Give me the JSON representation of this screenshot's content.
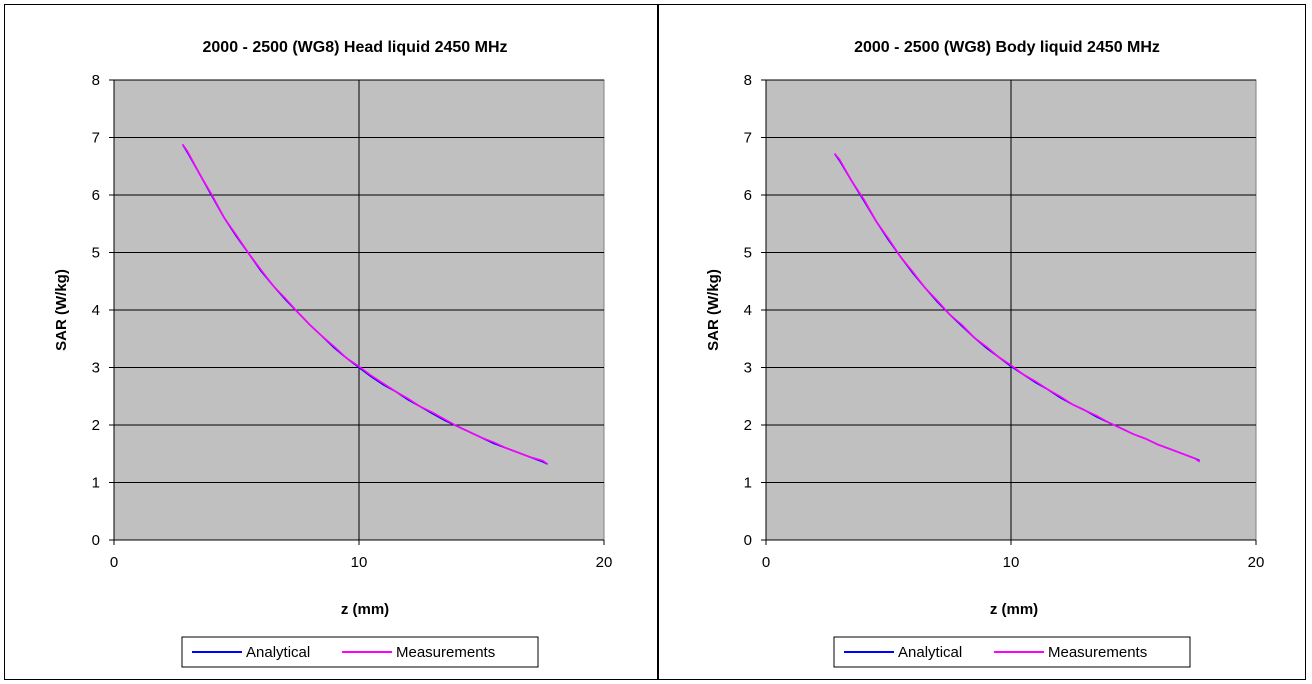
{
  "chart_data": [
    {
      "type": "line",
      "title": "2000 - 2500 (WG8) Head liquid 2450 MHz",
      "xlabel": "z (mm)",
      "ylabel": "SAR (W/kg)",
      "xlim": [
        0,
        20
      ],
      "ylim": [
        0,
        8
      ],
      "xticks": [
        "0",
        "10",
        "20"
      ],
      "yticks": [
        "0",
        "1",
        "2",
        "3",
        "4",
        "5",
        "6",
        "7",
        "8"
      ],
      "grid": true,
      "legend_position": "bottom",
      "series": [
        {
          "name": "Analytical",
          "color": "#0000ff",
          "x": [
            2.8,
            3.0,
            3.5,
            4.0,
            4.5,
            5.0,
            5.5,
            6.0,
            6.5,
            7.0,
            7.5,
            8.0,
            8.5,
            9.0,
            9.5,
            10.0,
            10.5,
            11.0,
            11.5,
            12.0,
            12.5,
            13.0,
            13.5,
            14.0,
            14.5,
            15.0,
            15.5,
            16.0,
            16.5,
            17.0,
            17.5,
            17.7
          ],
          "y": [
            6.88,
            6.74,
            6.36,
            5.98,
            5.6,
            5.28,
            4.98,
            4.68,
            4.42,
            4.18,
            3.96,
            3.74,
            3.54,
            3.34,
            3.16,
            3.0,
            2.84,
            2.7,
            2.58,
            2.44,
            2.32,
            2.2,
            2.08,
            1.98,
            1.88,
            1.78,
            1.68,
            1.6,
            1.52,
            1.44,
            1.36,
            1.32
          ]
        },
        {
          "name": "Measurements",
          "color": "#ff00ff",
          "x": [
            2.8,
            3.0,
            3.5,
            4.0,
            4.5,
            5.0,
            5.5,
            6.0,
            6.5,
            7.0,
            7.5,
            8.0,
            8.5,
            9.0,
            9.5,
            10.0,
            10.5,
            11.0,
            11.5,
            12.0,
            12.5,
            13.0,
            13.5,
            14.0,
            14.5,
            15.0,
            15.5,
            16.0,
            16.5,
            17.0,
            17.5,
            17.7
          ],
          "y": [
            6.88,
            6.76,
            6.36,
            6.0,
            5.6,
            5.3,
            4.98,
            4.7,
            4.42,
            4.2,
            3.96,
            3.74,
            3.54,
            3.36,
            3.16,
            3.02,
            2.86,
            2.72,
            2.58,
            2.46,
            2.32,
            2.22,
            2.1,
            1.98,
            1.88,
            1.78,
            1.7,
            1.6,
            1.52,
            1.44,
            1.38,
            1.32
          ]
        }
      ]
    },
    {
      "type": "line",
      "title": "2000 - 2500 (WG8) Body liquid 2450 MHz",
      "xlabel": "z (mm)",
      "ylabel": "SAR (W/kg)",
      "xlim": [
        0,
        20
      ],
      "ylim": [
        0,
        8
      ],
      "xticks": [
        "0",
        "10",
        "20"
      ],
      "yticks": [
        "0",
        "1",
        "2",
        "3",
        "4",
        "5",
        "6",
        "7",
        "8"
      ],
      "grid": true,
      "legend_position": "bottom",
      "series": [
        {
          "name": "Analytical",
          "color": "#0000ff",
          "x": [
            2.8,
            3.0,
            3.5,
            4.0,
            4.5,
            5.0,
            5.5,
            6.0,
            6.5,
            7.0,
            7.5,
            8.0,
            8.5,
            9.0,
            9.5,
            10.0,
            10.5,
            11.0,
            11.5,
            12.0,
            12.5,
            13.0,
            13.5,
            14.0,
            14.5,
            15.0,
            15.5,
            16.0,
            16.5,
            17.0,
            17.5,
            17.7
          ],
          "y": [
            6.72,
            6.6,
            6.24,
            5.9,
            5.54,
            5.22,
            4.92,
            4.64,
            4.38,
            4.14,
            3.92,
            3.72,
            3.52,
            3.34,
            3.18,
            3.02,
            2.88,
            2.74,
            2.62,
            2.48,
            2.36,
            2.26,
            2.14,
            2.04,
            1.94,
            1.84,
            1.76,
            1.66,
            1.58,
            1.5,
            1.42,
            1.38
          ]
        },
        {
          "name": "Measurements",
          "color": "#ff00ff",
          "x": [
            2.8,
            3.0,
            3.5,
            4.0,
            4.5,
            5.0,
            5.5,
            6.0,
            6.5,
            7.0,
            7.5,
            8.0,
            8.5,
            9.0,
            9.5,
            10.0,
            10.5,
            11.0,
            11.5,
            12.0,
            12.5,
            13.0,
            13.5,
            14.0,
            14.5,
            15.0,
            15.5,
            16.0,
            16.5,
            17.0,
            17.5,
            17.7
          ],
          "y": [
            6.72,
            6.62,
            6.24,
            5.92,
            5.54,
            5.24,
            4.92,
            4.66,
            4.38,
            4.16,
            3.92,
            3.74,
            3.52,
            3.36,
            3.18,
            3.04,
            2.88,
            2.76,
            2.62,
            2.5,
            2.36,
            2.26,
            2.16,
            2.04,
            1.94,
            1.84,
            1.76,
            1.66,
            1.58,
            1.5,
            1.42,
            1.36
          ]
        }
      ]
    }
  ]
}
